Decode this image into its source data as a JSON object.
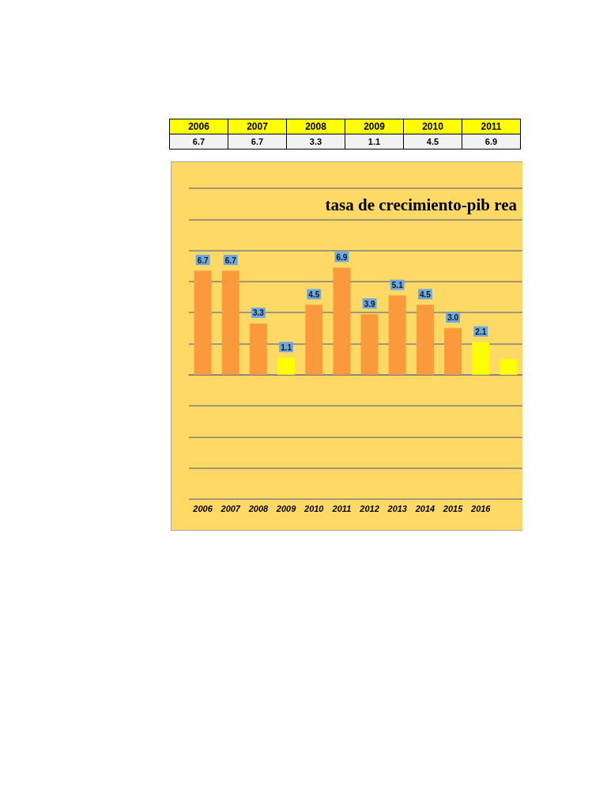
{
  "chart_data": {
    "type": "bar",
    "title": "tasa de crecimiento-pib rea",
    "categories": [
      "2006",
      "2007",
      "2008",
      "2009",
      "2010",
      "2011",
      "2012",
      "2013",
      "2014",
      "2015",
      "2016",
      null
    ],
    "values": [
      6.7,
      6.7,
      3.3,
      1.1,
      4.5,
      6.9,
      3.9,
      5.1,
      4.5,
      3.0,
      2.1,
      1.0
    ],
    "value_labels": [
      "6.7",
      "6.7",
      "3.3",
      "1.1",
      "4.5",
      "6.9",
      "3.9",
      "5.1",
      "4.5",
      "3.0",
      "2.1",
      null
    ],
    "colors": [
      "#fa9a3c",
      "#fa9a3c",
      "#fa9a3c",
      "#ffff00",
      "#fa9a3c",
      "#fa9a3c",
      "#fa9a3c",
      "#fa9a3c",
      "#fa9a3c",
      "#fa9a3c",
      "#ffff00",
      "#ffff00"
    ],
    "ylim": [
      -8,
      12
    ],
    "yticks": [
      {
        "value": -8,
        "label": null
      },
      {
        "value": -6,
        "label": null
      },
      {
        "value": -4,
        "label": null
      },
      {
        "value": -2,
        "label": null
      },
      {
        "value": 0,
        "label": null
      },
      {
        "value": 2,
        "label": null
      },
      {
        "value": 4,
        "label": null
      },
      {
        "value": 6,
        "label": null
      },
      {
        "value": 8,
        "label": null
      },
      {
        "value": 10,
        "label": null
      },
      {
        "value": 12,
        "label": null
      }
    ],
    "grid": "y",
    "tick_labels": "x"
  }
}
